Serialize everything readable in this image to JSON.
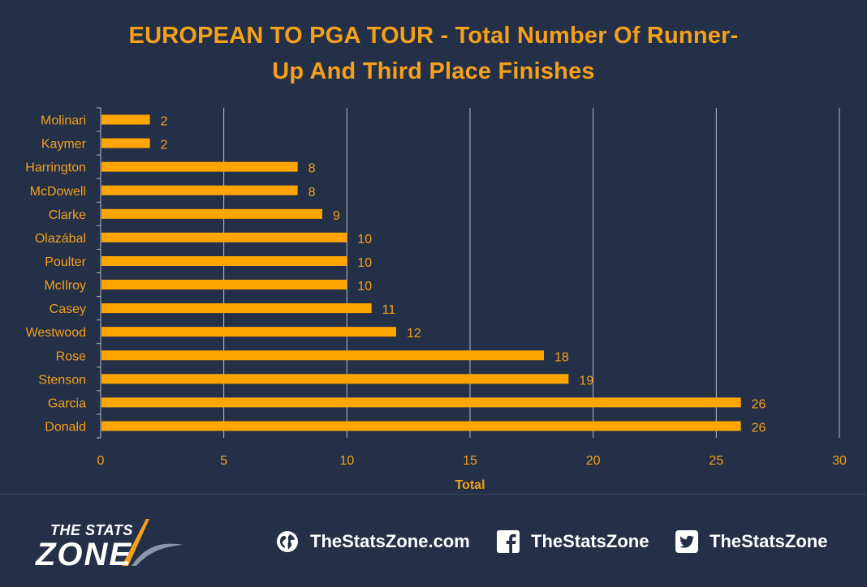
{
  "title_lines": [
    "EUROPEAN TO PGA TOUR - Total Number Of Runner-",
    "Up And Third Place Finishes"
  ],
  "colors": {
    "background": "#243047",
    "accent": "#f5a01a",
    "bar": "#ffa500",
    "grid": "#b8bcc6",
    "text_light": "#ffffff"
  },
  "chart_data": {
    "type": "bar",
    "orientation": "horizontal",
    "title": "EUROPEAN TO PGA TOUR - Total Number Of Runner-Up And Third Place Finishes",
    "categories": [
      "Molinari",
      "Kaymer",
      "Harrington",
      "McDowell",
      "Clarke",
      "Olazábal",
      "Poulter",
      "McIlroy",
      "Casey",
      "Westwood",
      "Rose",
      "Stenson",
      "Garcia",
      "Donald"
    ],
    "values": [
      2,
      2,
      8,
      8,
      9,
      10,
      10,
      10,
      11,
      12,
      18,
      19,
      26,
      26
    ],
    "xlabel": "Total",
    "ylabel": "",
    "xlim": [
      0,
      30
    ],
    "xticks": [
      0,
      5,
      10,
      15,
      20,
      25,
      30
    ],
    "grid": "vertical",
    "data_labels": true,
    "legend": "none"
  },
  "footer": {
    "logo_top": "THE STATS",
    "logo_main": "ZONE",
    "website": {
      "icon": "globe-icon",
      "label": "TheStatsZone.com"
    },
    "facebook": {
      "icon": "facebook-icon",
      "label": "TheStatsZone"
    },
    "twitter": {
      "icon": "twitter-icon",
      "label": "TheStatsZone"
    }
  }
}
